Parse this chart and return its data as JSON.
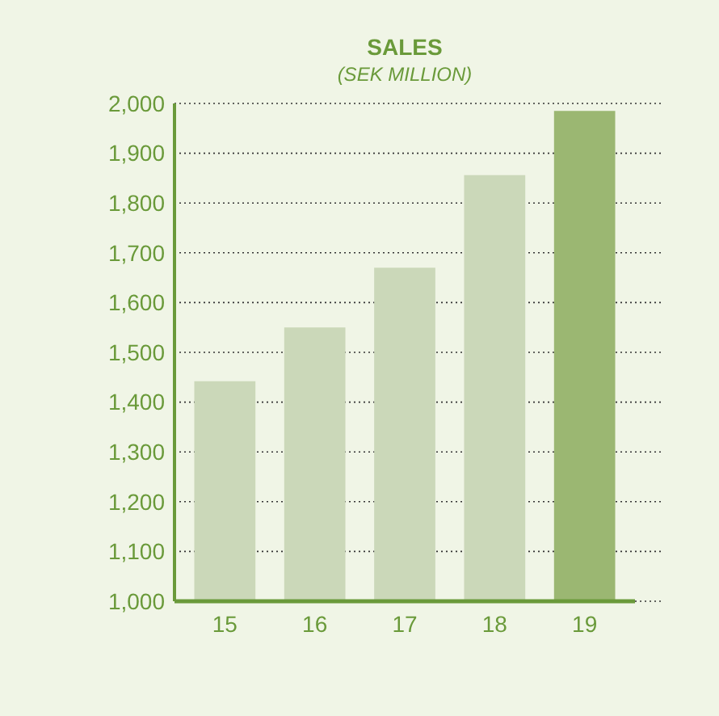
{
  "chart_data": {
    "type": "bar",
    "title": "SALES",
    "subtitle": "(SEK MILLION)",
    "categories": [
      "15",
      "16",
      "17",
      "18",
      "19"
    ],
    "values": [
      1442,
      1550,
      1670,
      1856,
      1985
    ],
    "colors": [
      "#cbd8b9",
      "#cbd8b9",
      "#cbd8b9",
      "#cbd8b9",
      "#9bb772"
    ],
    "ylim": [
      1000,
      2000
    ],
    "yticks": [
      {
        "value": 1000,
        "label": "1,000"
      },
      {
        "value": 1100,
        "label": "1,100"
      },
      {
        "value": 1200,
        "label": "1,200"
      },
      {
        "value": 1300,
        "label": "1,300"
      },
      {
        "value": 1400,
        "label": "1,400"
      },
      {
        "value": 1500,
        "label": "1,500"
      },
      {
        "value": 1600,
        "label": "1,600"
      },
      {
        "value": 1700,
        "label": "1,700"
      },
      {
        "value": 1800,
        "label": "1,800"
      },
      {
        "value": 1900,
        "label": "1,900"
      },
      {
        "value": 2000,
        "label": "2,000"
      }
    ],
    "grid": "y"
  }
}
